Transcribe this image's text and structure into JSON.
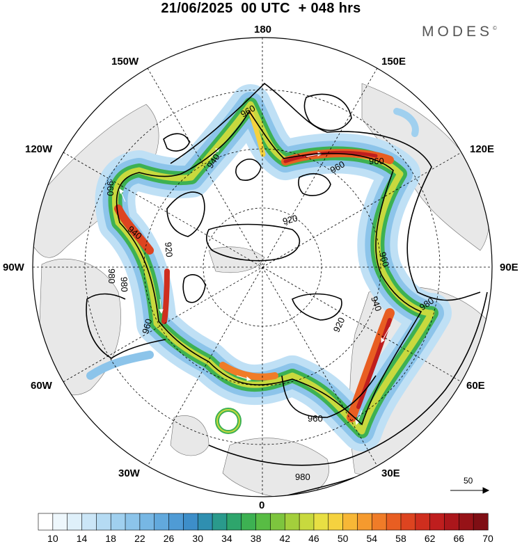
{
  "header": {
    "title": "21/06/2025  00 UTC  + 048 hrs"
  },
  "brand": {
    "name": "MODES",
    "mark": "©"
  },
  "map": {
    "projection": "north-polar-stereographic",
    "longitude_labels": [
      "180",
      "150E",
      "120E",
      "90E",
      "60E",
      "30E",
      "0",
      "30W",
      "60W",
      "90W",
      "120W",
      "150W"
    ],
    "contour_labels": [
      "960",
      "940",
      "960",
      "940",
      "960",
      "960",
      "920",
      "920",
      "960",
      "980",
      "980",
      "960",
      "940",
      "920",
      "980",
      "980",
      "960"
    ]
  },
  "vector_scale": {
    "label": "50"
  },
  "colorbar": {
    "tick_labels": [
      "10",
      "14",
      "18",
      "22",
      "26",
      "30",
      "34",
      "38",
      "42",
      "46",
      "50",
      "54",
      "58",
      "62",
      "66",
      "70"
    ],
    "colors": [
      "#ffffff",
      "#eef7fc",
      "#dff0fa",
      "#cbe6f7",
      "#b5dbf3",
      "#a0d0ef",
      "#8cc4ea",
      "#77b7e4",
      "#62a9dd",
      "#4f9bd5",
      "#3d8ec9",
      "#2f8fb0",
      "#2a9a8c",
      "#2ea56c",
      "#3db152",
      "#58bc44",
      "#7dc53e",
      "#a3cf3c",
      "#c8d93e",
      "#e8df43",
      "#f5d23f",
      "#f7b736",
      "#f59a2e",
      "#f07c28",
      "#e85e22",
      "#dd4420",
      "#cf2e1e",
      "#bf1e1e",
      "#ab161b",
      "#961217",
      "#7f0e14"
    ]
  }
}
